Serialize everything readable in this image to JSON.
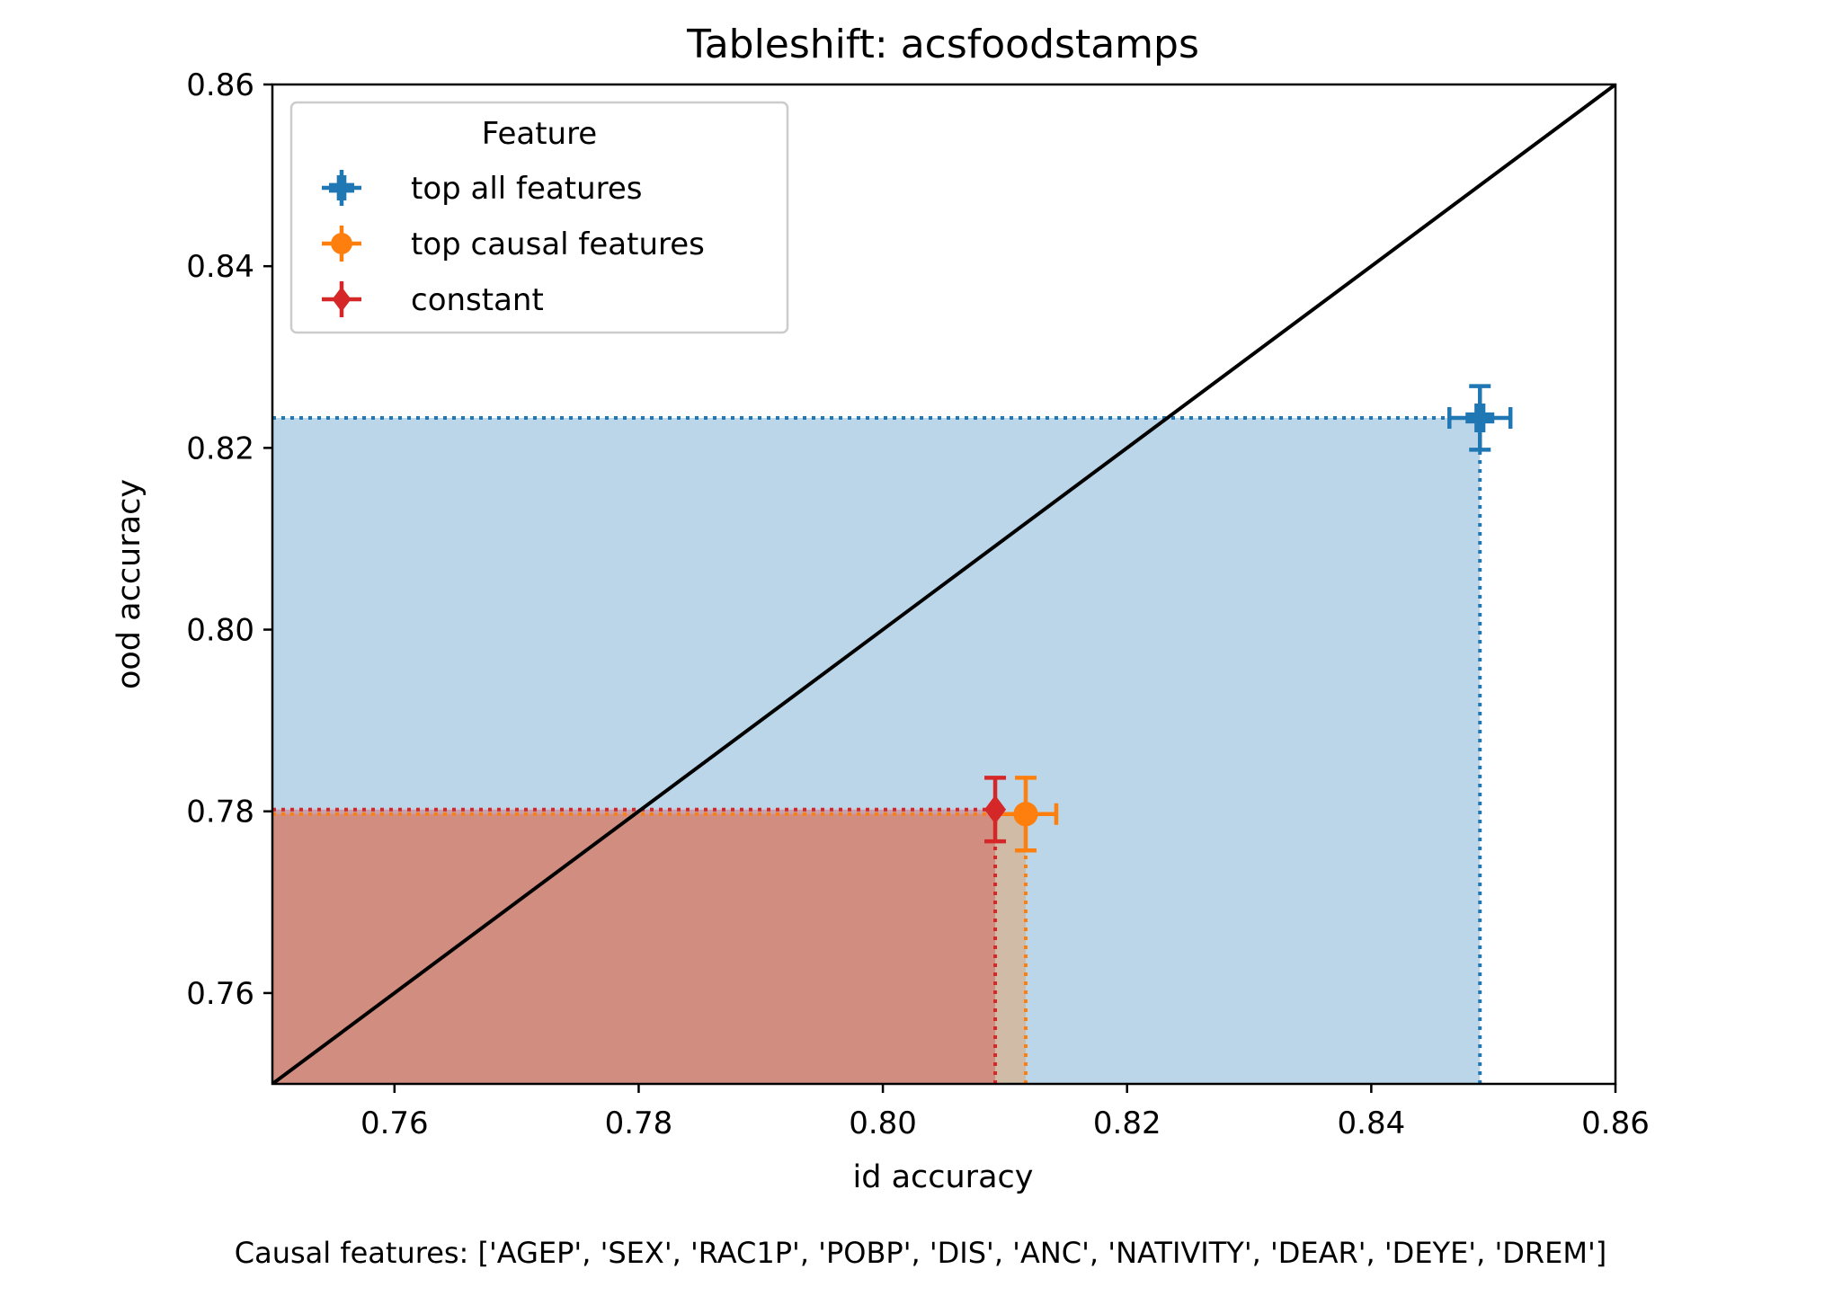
{
  "chart_data": {
    "type": "scatter",
    "title": "Tableshift: acsfoodstamps",
    "xlabel": "id accuracy",
    "ylabel": "ood accuracy",
    "xlim": [
      0.75,
      0.86
    ],
    "ylim": [
      0.75,
      0.86
    ],
    "xticks": [
      "0.76",
      "0.78",
      "0.80",
      "0.82",
      "0.84",
      "0.86"
    ],
    "yticks": [
      "0.76",
      "0.78",
      "0.80",
      "0.82",
      "0.84",
      "0.86"
    ],
    "grid": false,
    "legend": {
      "title": "Feature",
      "placement": "top-left"
    },
    "diagonal": {
      "from": [
        0.75,
        0.75
      ],
      "to": [
        0.86,
        0.86
      ],
      "color": "#000000"
    },
    "series": [
      {
        "name": "top all features",
        "marker": "plus-filled",
        "color": "#1f77b4",
        "x": 0.8489,
        "y": 0.8233,
        "xerr": 0.0025,
        "yerr": 0.0035
      },
      {
        "name": "top causal features",
        "marker": "circle",
        "color": "#ff7f0e",
        "x": 0.8117,
        "y": 0.7797,
        "xerr": 0.0025,
        "yerr": 0.004
      },
      {
        "name": "constant",
        "marker": "diamond",
        "color": "#d62728",
        "x": 0.8092,
        "y": 0.7802,
        "xerr": 0.0,
        "yerr": 0.0035
      }
    ],
    "caption": "Causal features: ['AGEP', 'SEX', 'RAC1P', 'POBP', 'DIS', 'ANC', 'NATIVITY', 'DEAR', 'DEYE', 'DREM']"
  }
}
